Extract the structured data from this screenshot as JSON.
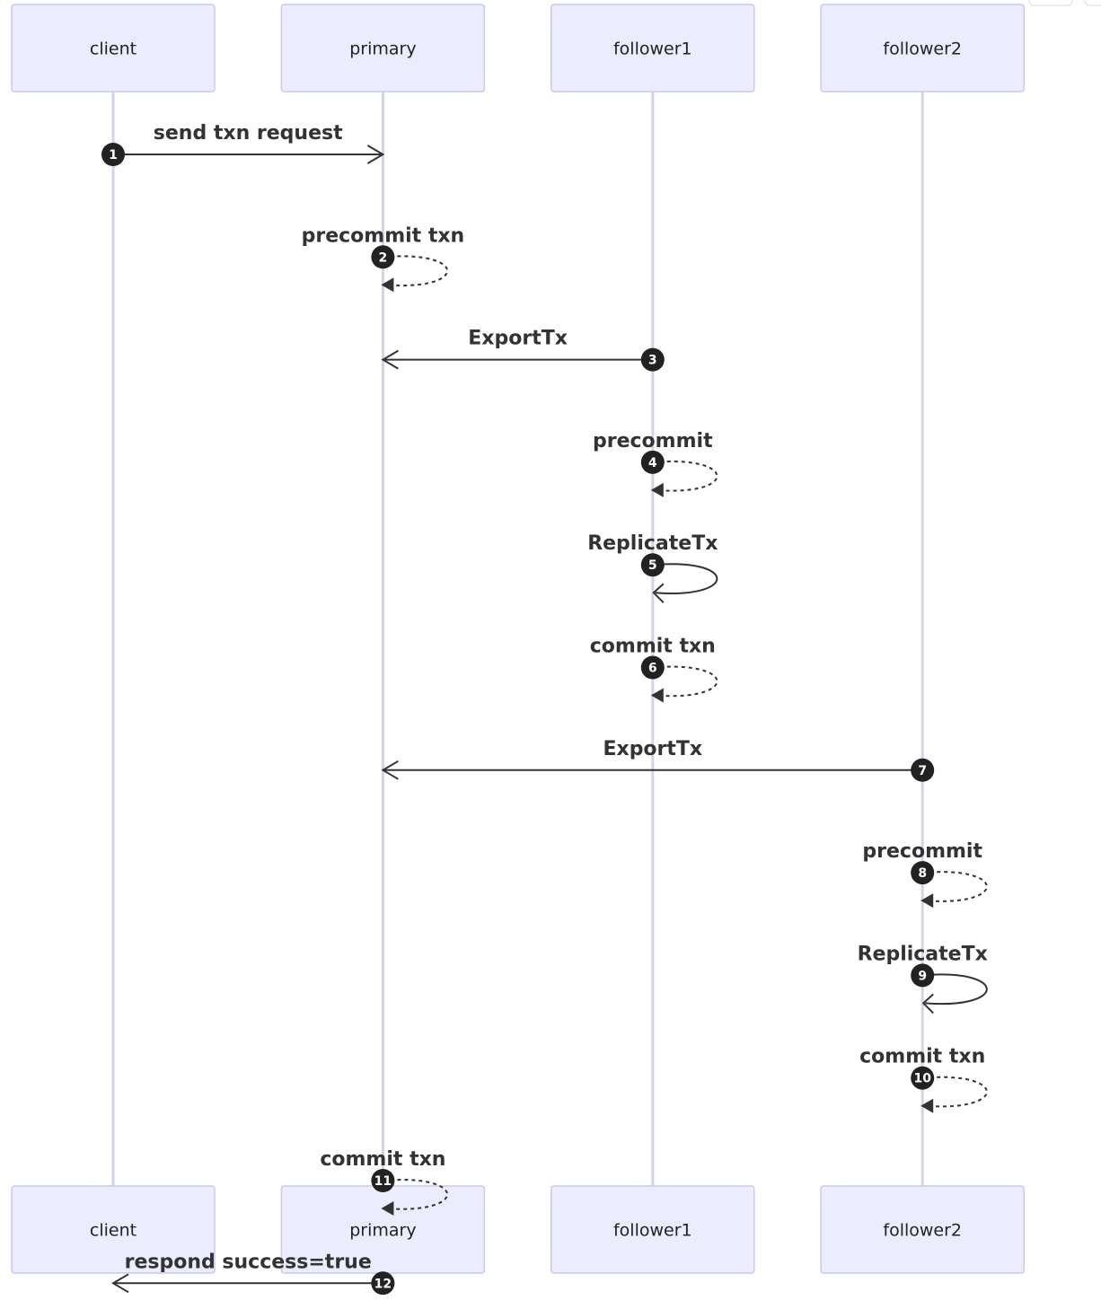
{
  "participants": [
    {
      "id": "client",
      "label": "client"
    },
    {
      "id": "primary",
      "label": "primary"
    },
    {
      "id": "follower1",
      "label": "follower1"
    },
    {
      "id": "follower2",
      "label": "follower2"
    }
  ],
  "messages": [
    {
      "seq": "1",
      "from": "client",
      "to": "primary",
      "label": "send txn request",
      "style": "solid"
    },
    {
      "seq": "2",
      "from": "primary",
      "to": "primary",
      "label": "precommit txn",
      "style": "dashed"
    },
    {
      "seq": "3",
      "from": "follower1",
      "to": "primary",
      "label": "ExportTx",
      "style": "solid"
    },
    {
      "seq": "4",
      "from": "follower1",
      "to": "follower1",
      "label": "precommit",
      "style": "dashed"
    },
    {
      "seq": "5",
      "from": "follower1",
      "to": "follower1",
      "label": "ReplicateTx",
      "style": "solid"
    },
    {
      "seq": "6",
      "from": "follower1",
      "to": "follower1",
      "label": "commit txn",
      "style": "dashed"
    },
    {
      "seq": "7",
      "from": "follower2",
      "to": "primary",
      "label": "ExportTx",
      "style": "solid"
    },
    {
      "seq": "8",
      "from": "follower2",
      "to": "follower2",
      "label": "precommit",
      "style": "dashed"
    },
    {
      "seq": "9",
      "from": "follower2",
      "to": "follower2",
      "label": "ReplicateTx",
      "style": "solid"
    },
    {
      "seq": "10",
      "from": "follower2",
      "to": "follower2",
      "label": "commit txn",
      "style": "dashed"
    },
    {
      "seq": "11",
      "from": "primary",
      "to": "primary",
      "label": "commit txn",
      "style": "dashed"
    },
    {
      "seq": "12",
      "from": "primary",
      "to": "client",
      "label": "respond success=true",
      "style": "solid"
    }
  ]
}
